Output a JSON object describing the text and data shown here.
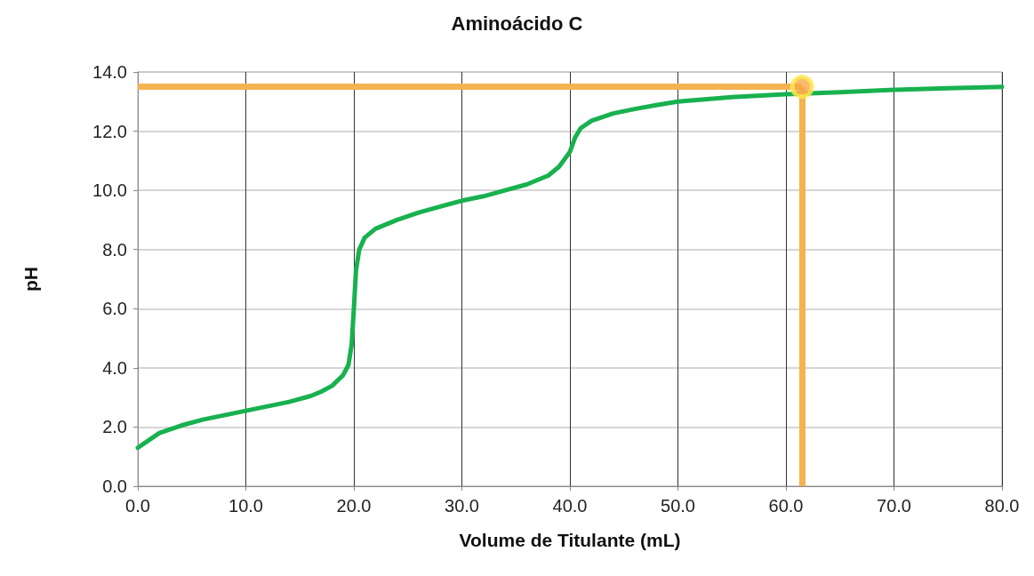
{
  "chart_data": {
    "type": "line",
    "title": "Aminoácido C",
    "xlabel": "Volume de Titulante (mL)",
    "ylabel": "pH",
    "xlim": [
      0,
      80
    ],
    "xticks": [
      {
        "value": 0,
        "label": "0.0"
      },
      {
        "value": 10,
        "label": "10.0"
      },
      {
        "value": 20,
        "label": "20.0"
      },
      {
        "value": 30,
        "label": "30.0"
      },
      {
        "value": 40,
        "label": "40.0"
      },
      {
        "value": 50,
        "label": "50.0"
      },
      {
        "value": 60,
        "label": "60.0"
      },
      {
        "value": 70,
        "label": "70.0"
      },
      {
        "value": 80,
        "label": "80.0"
      }
    ],
    "ylim": [
      0,
      14
    ],
    "yticks": [
      {
        "value": 0,
        "label": "0.0"
      },
      {
        "value": 2,
        "label": "2.0"
      },
      {
        "value": 4,
        "label": "4.0"
      },
      {
        "value": 6,
        "label": "6.0"
      },
      {
        "value": 8,
        "label": "8.0"
      },
      {
        "value": 10,
        "label": "10.0"
      },
      {
        "value": 12,
        "label": "12.0"
      },
      {
        "value": 14,
        "label": "14.0"
      }
    ],
    "grid": true,
    "line_style": "solid",
    "series": [
      {
        "marker": "none",
        "color": "#18b14f",
        "x": [
          0,
          1,
          2,
          4,
          6,
          8,
          10,
          12,
          14,
          16,
          17,
          18,
          19,
          19.5,
          19.8,
          20,
          20.2,
          20.5,
          21,
          22,
          24,
          26,
          28,
          30,
          32,
          34,
          36,
          38,
          39,
          40,
          40.5,
          41,
          42,
          44,
          46,
          48,
          50,
          55,
          60,
          65,
          70,
          75,
          80
        ],
        "values": [
          1.3,
          1.55,
          1.8,
          2.05,
          2.25,
          2.4,
          2.55,
          2.7,
          2.85,
          3.05,
          3.2,
          3.4,
          3.75,
          4.1,
          4.8,
          6.0,
          7.3,
          8.0,
          8.4,
          8.7,
          9.0,
          9.25,
          9.45,
          9.65,
          9.8,
          10.0,
          10.2,
          10.5,
          10.8,
          11.3,
          11.8,
          12.1,
          12.35,
          12.6,
          12.75,
          12.88,
          13.0,
          13.15,
          13.25,
          13.32,
          13.4,
          13.45,
          13.5
        ]
      },
      {
        "type": "scatter",
        "marker": "circle",
        "color": "#f7a94a",
        "x": [
          61.5
        ],
        "values": [
          13.5
        ]
      }
    ],
    "ref_lines": [
      {
        "axis": "x",
        "value": 61.5,
        "color": "#f4b350"
      },
      {
        "axis": "y",
        "value": 13.5,
        "color": "#f4b350"
      }
    ]
  }
}
